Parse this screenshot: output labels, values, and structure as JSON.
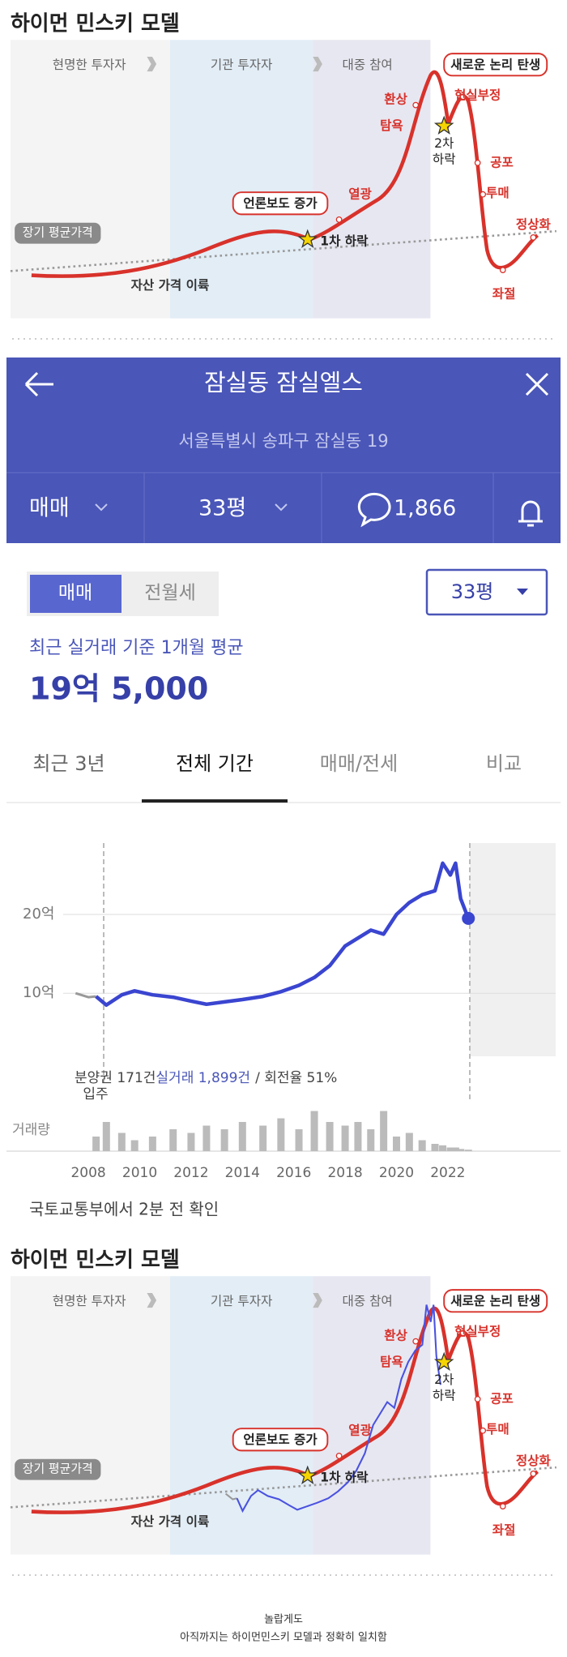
{
  "diagram": {
    "title": "하이먼 민스키 모델",
    "phases": [
      "현명한 투자자",
      "기관 투자자",
      "대중 참여"
    ],
    "average": "장기 평균가격",
    "takeoff": "자산 가격 이륙",
    "media": "언론보도 증가",
    "first_drop": "1차 하락",
    "euphoria": "열광",
    "illusion": "환상",
    "greed": "탐욕",
    "new_paradigm": "새로운 논리 탄생",
    "denial": "현실부정",
    "second_drop": [
      "2차",
      "하락"
    ],
    "fear": "공포",
    "panic": "투매",
    "normal": "정상화",
    "despair": "좌절"
  },
  "app": {
    "title": "잠실동 잠실엘스",
    "address": "서울특별시 송파구 잠실동 19",
    "deal": "매매",
    "size": "33평",
    "comments": "1,866",
    "toggle": [
      "매매",
      "전월세"
    ],
    "select": "33평",
    "avg_label": "최근 실거래 기준 1개월 평균",
    "avg_price": "19억 5,000",
    "tabs": [
      "최근 3년",
      "전체 기간",
      "매매/전세",
      "비교"
    ]
  },
  "chart_data": {
    "type": "line",
    "x": [
      2007.5,
      2008.0,
      2008.3,
      2008.7,
      2009.3,
      2009.8,
      2010.5,
      2011.3,
      2012.0,
      2012.6,
      2013.3,
      2014.0,
      2014.8,
      2015.5,
      2016.2,
      2016.8,
      2017.4,
      2018.0,
      2018.5,
      2019.0,
      2019.5,
      2020.0,
      2020.5,
      2021.0,
      2021.5,
      2021.8,
      2022.1,
      2022.3,
      2022.5,
      2022.8
    ],
    "series": [
      {
        "name": "분양권 171건",
        "color": "#999999",
        "values": [
          10,
          9.5,
          9.6,
          null,
          null,
          null,
          null,
          null,
          null,
          null,
          null,
          null,
          null,
          null,
          null,
          null,
          null,
          null,
          null,
          null,
          null,
          null,
          null,
          null,
          null,
          null,
          null,
          null,
          null,
          null
        ]
      },
      {
        "name": "실거래 1,899건",
        "color": "#3a45d0",
        "values": [
          null,
          null,
          9.6,
          8.5,
          9.8,
          10.3,
          9.8,
          9.5,
          9.0,
          8.6,
          8.9,
          9.2,
          9.6,
          10.2,
          11.0,
          12.0,
          13.5,
          16.0,
          17.0,
          18.0,
          17.5,
          20.0,
          21.5,
          22.5,
          23.0,
          26.5,
          25.0,
          26.5,
          22.0,
          19.5
        ]
      }
    ],
    "turnover": "/ 회전율 51%",
    "move_in": "입주",
    "volume_label": "거래량",
    "volume": [
      0,
      0,
      20,
      40,
      25,
      15,
      20,
      30,
      25,
      35,
      30,
      40,
      35,
      45,
      30,
      55,
      40,
      35,
      40,
      30,
      55,
      20,
      25,
      15,
      10,
      8,
      5,
      5,
      3,
      2
    ],
    "xlim": [
      2006.45,
      2026.2
    ],
    "ylim": [
      2,
      29
    ],
    "xticks": [
      2008,
      2010,
      2012,
      2014,
      2016,
      2018,
      2020,
      2022
    ],
    "yticks": [
      {
        "value": 10,
        "label": "10억"
      },
      {
        "value": 20,
        "label": "20억"
      }
    ],
    "grid": true
  },
  "source": "국토교통부에서 2분 전 확인",
  "footer": [
    "놀랍게도",
    "아직까지는 하이먼민스키 모델과 정확히 일치함"
  ]
}
